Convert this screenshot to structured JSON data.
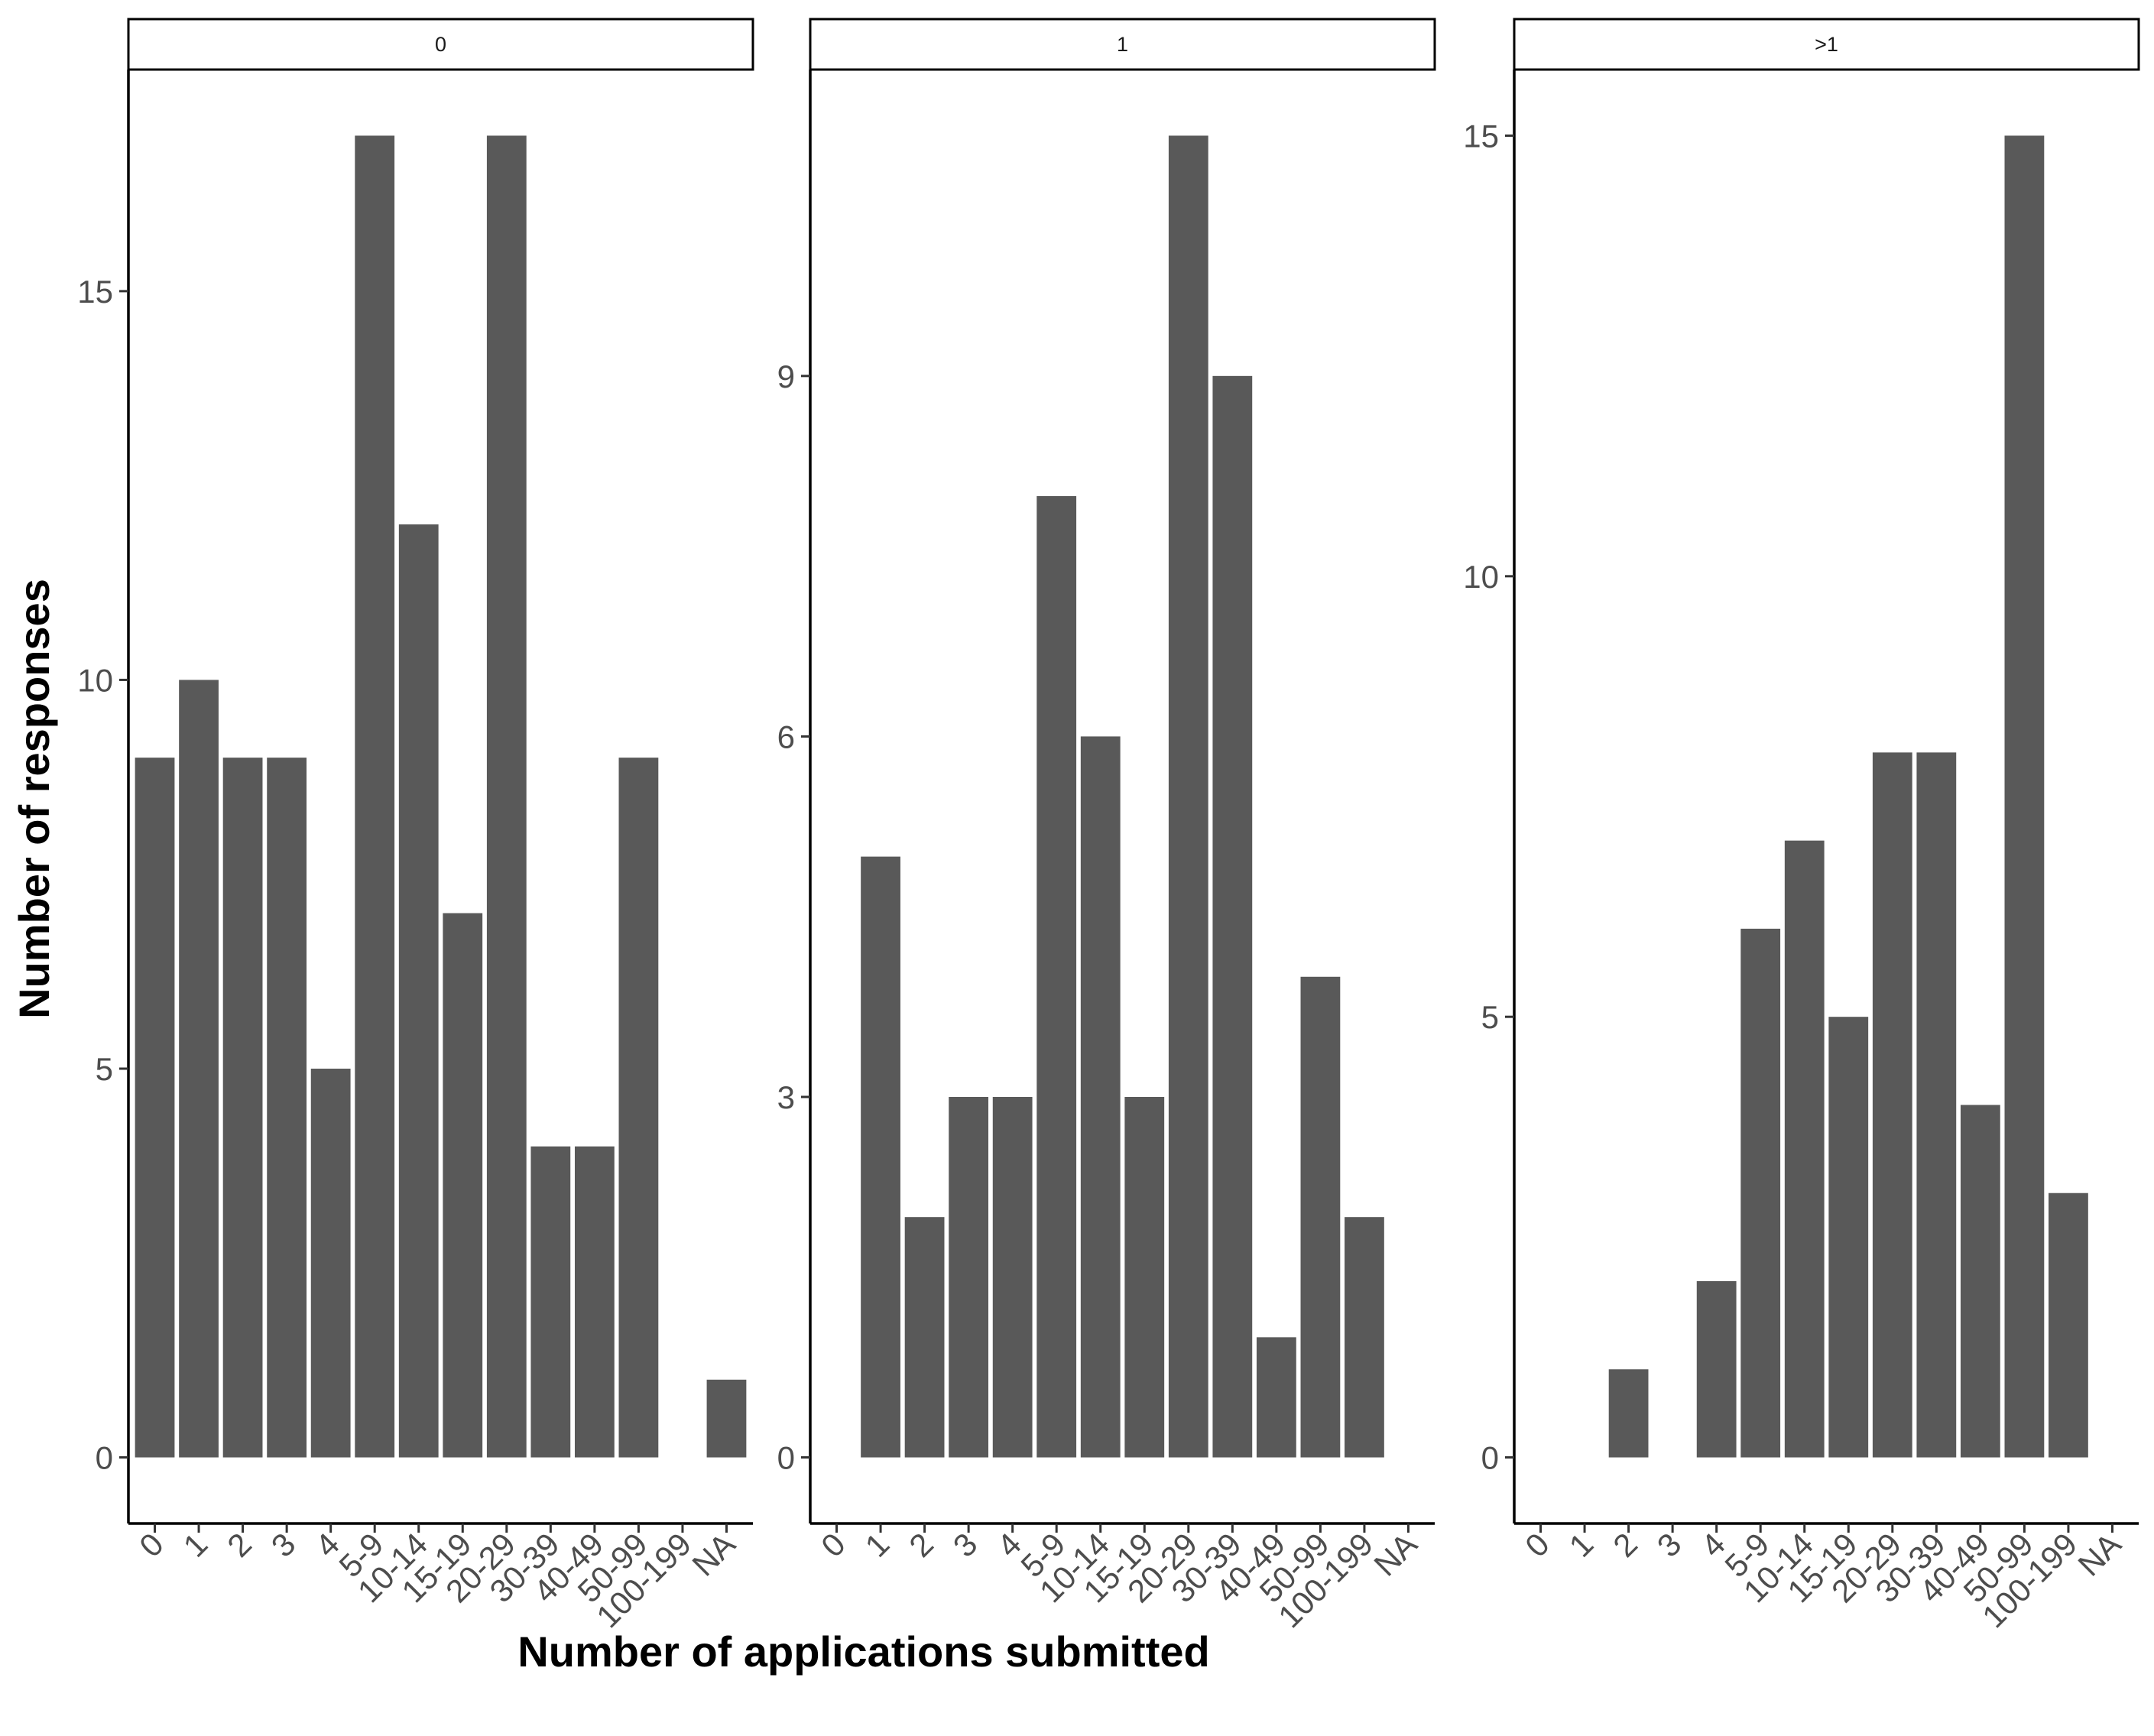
{
  "chart_data": {
    "type": "bar",
    "xlabel": "Number of applications submitted",
    "ylabel": "Number of responses",
    "bar_color": "#595959",
    "grid": false,
    "categories": [
      "0",
      "1",
      "2",
      "3",
      "4",
      "5-9",
      "10-14",
      "15-19",
      "20-29",
      "30-39",
      "40-49",
      "50-99",
      "100-199",
      "NA"
    ],
    "panels": [
      {
        "strip_label": "0",
        "values": [
          9,
          10,
          9,
          9,
          5,
          17,
          12,
          7,
          17,
          4,
          4,
          9,
          0,
          1
        ],
        "ylim": [
          -0.85,
          17.85
        ],
        "yticks": [
          0,
          5,
          10,
          15
        ],
        "ytick_labels": [
          "0",
          "5",
          "10",
          "15"
        ]
      },
      {
        "strip_label": "1",
        "values": [
          0,
          5,
          2,
          3,
          3,
          8,
          6,
          3,
          11,
          9,
          1,
          4,
          2,
          0
        ],
        "ylim": [
          -0.55,
          11.55
        ],
        "yticks": [
          0,
          3,
          6,
          9
        ],
        "ytick_labels": [
          "0",
          "3",
          "6",
          "9"
        ]
      },
      {
        "strip_label": ">1",
        "values": [
          0,
          0,
          1,
          0,
          2,
          6,
          7,
          5,
          8,
          8,
          4,
          15,
          3,
          0
        ],
        "ylim": [
          -0.75,
          15.75
        ],
        "yticks": [
          0,
          5,
          10,
          15
        ],
        "ytick_labels": [
          "0",
          "5",
          "10",
          "15"
        ]
      }
    ]
  }
}
